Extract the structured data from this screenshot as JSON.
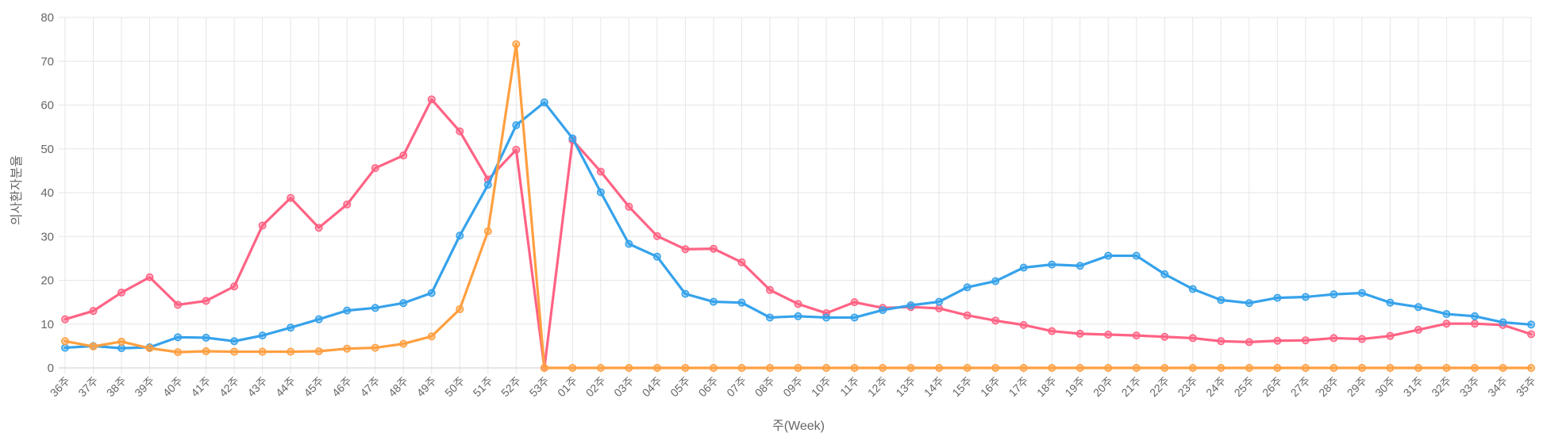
{
  "chart_data": {
    "type": "line",
    "title": "",
    "xlabel": "주(Week)",
    "ylabel": "의사환자분율",
    "ylim": [
      0,
      80
    ],
    "yticks": [
      0,
      10,
      20,
      30,
      40,
      50,
      60,
      70,
      80
    ],
    "grid": true,
    "categories": [
      "36주",
      "37주",
      "38주",
      "39주",
      "40주",
      "41주",
      "42주",
      "43주",
      "44주",
      "45주",
      "46주",
      "47주",
      "48주",
      "49주",
      "50주",
      "51주",
      "52주",
      "53주",
      "01주",
      "02주",
      "03주",
      "04주",
      "05주",
      "06주",
      "07주",
      "08주",
      "09주",
      "10주",
      "11주",
      "12주",
      "13주",
      "14주",
      "15주",
      "16주",
      "17주",
      "18주",
      "19주",
      "20주",
      "21주",
      "22주",
      "23주",
      "24주",
      "25주",
      "26주",
      "27주",
      "28주",
      "29주",
      "30주",
      "31주",
      "32주",
      "33주",
      "34주",
      "35주"
    ],
    "series": [
      {
        "color": "#ff6384",
        "values": [
          11.1,
          13.0,
          17.2,
          20.7,
          14.4,
          15.3,
          18.6,
          32.5,
          38.8,
          32.0,
          37.3,
          45.6,
          48.5,
          61.3,
          54.0,
          43.0,
          49.8,
          0.0,
          52.0,
          44.8,
          36.8,
          30.1,
          27.1,
          27.2,
          24.1,
          17.8,
          14.6,
          12.5,
          15.0,
          13.7,
          13.9,
          13.6,
          12.0,
          10.8,
          9.8,
          8.4,
          7.8,
          7.6,
          7.4,
          7.1,
          6.8,
          6.1,
          5.9,
          6.2,
          6.3,
          6.8,
          6.6,
          7.3,
          8.7,
          10.1,
          10.1,
          9.8,
          7.7
        ]
      },
      {
        "color": "#36a2eb",
        "values": [
          4.6,
          5.0,
          4.5,
          4.7,
          7.0,
          6.9,
          6.1,
          7.4,
          9.2,
          11.1,
          13.1,
          13.7,
          14.8,
          17.1,
          30.2,
          41.8,
          55.4,
          60.6,
          52.4,
          40.1,
          28.3,
          25.4,
          16.9,
          15.1,
          14.9,
          11.5,
          11.8,
          11.5,
          11.5,
          13.2,
          14.3,
          15.1,
          18.4,
          19.8,
          22.9,
          23.6,
          23.3,
          25.6,
          25.6,
          21.4,
          18.0,
          15.5,
          14.8,
          16.0,
          16.2,
          16.8,
          17.1,
          14.9,
          13.9,
          12.3,
          11.8,
          10.4,
          9.9
        ]
      },
      {
        "color": "#ff9f40",
        "values": [
          6.1,
          4.9,
          6.0,
          4.5,
          3.6,
          3.8,
          3.7,
          3.7,
          3.7,
          3.8,
          4.4,
          4.6,
          5.5,
          7.2,
          13.4,
          31.2,
          73.9,
          0,
          0,
          0,
          0,
          0,
          0,
          0,
          0,
          0,
          0,
          0,
          0,
          0,
          0,
          0,
          0,
          0,
          0,
          0,
          0,
          0,
          0,
          0,
          0,
          0,
          0,
          0,
          0,
          0,
          0,
          0,
          0,
          0,
          0,
          0,
          0
        ]
      }
    ]
  }
}
